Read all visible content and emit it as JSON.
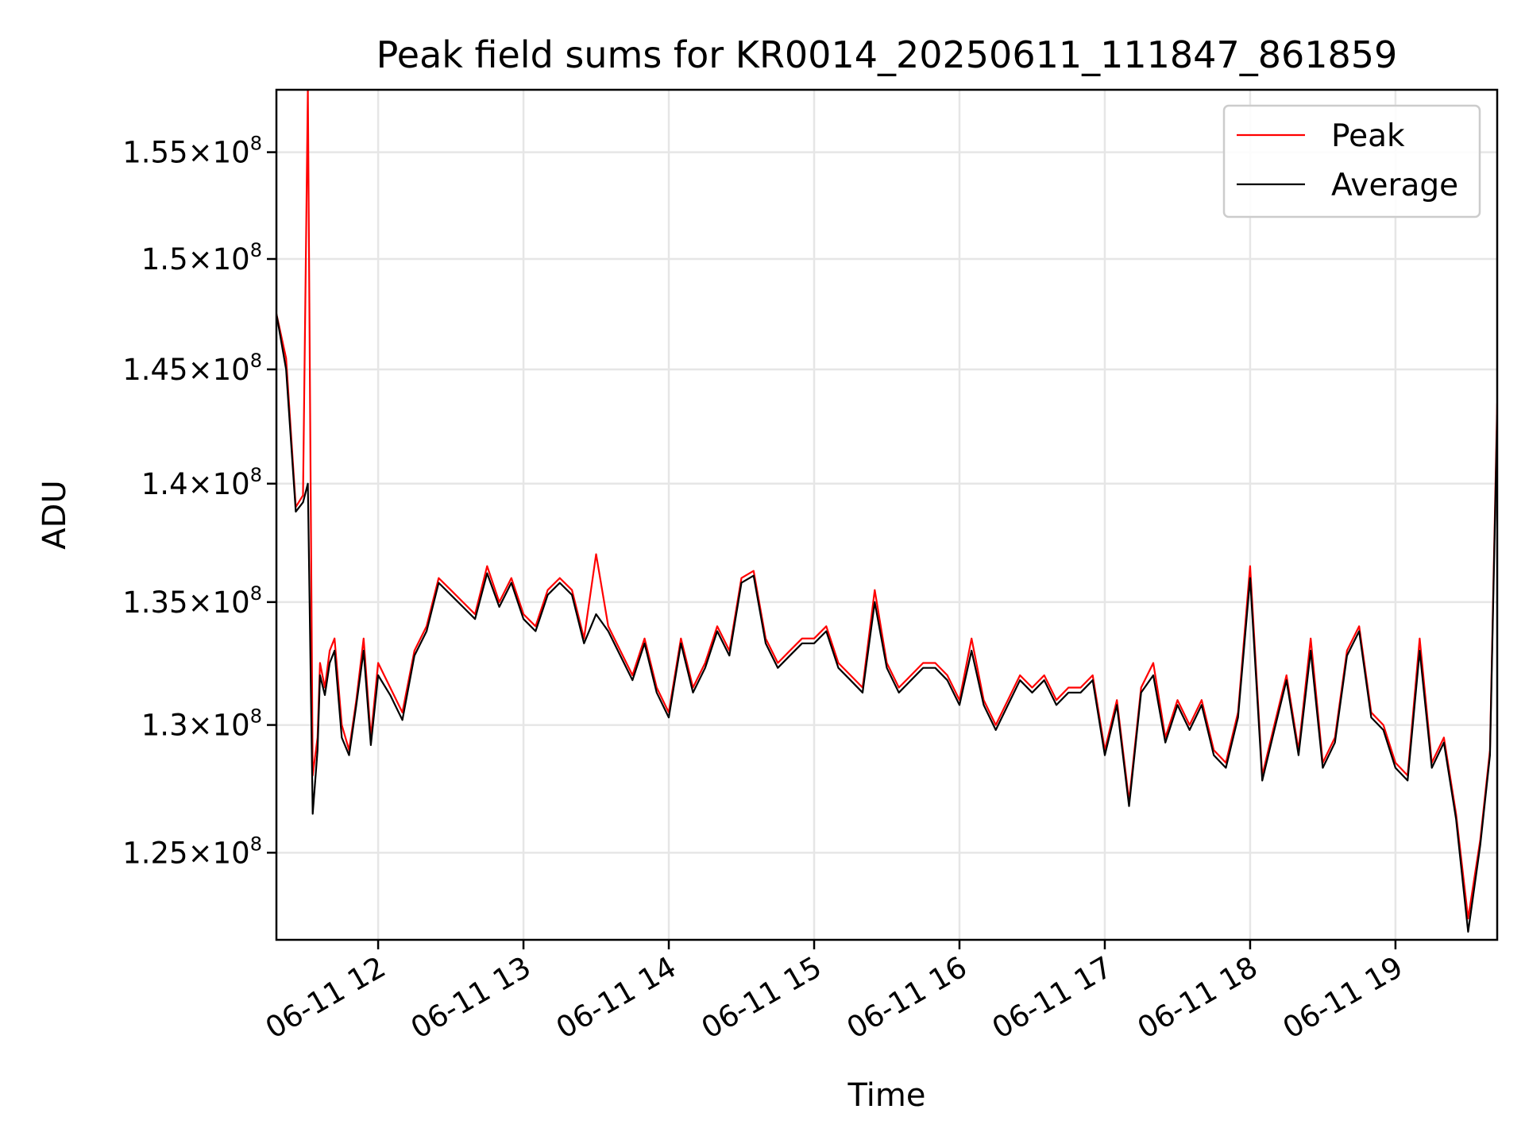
{
  "chart_data": {
    "type": "line",
    "title": "Peak field sums for KR0014_20250611_111847_861859",
    "xlabel": "Time",
    "ylabel": "ADU",
    "y_scale": "log",
    "ylim": [
      121700000,
      158000000
    ],
    "xlim": [
      "2025-06-11 11:18",
      "2025-06-11 19:42"
    ],
    "x_tick_labels": [
      "06-11 12",
      "06-11 13",
      "06-11 14",
      "06-11 15",
      "06-11 16",
      "06-11 17",
      "06-11 18",
      "06-11 19"
    ],
    "y_ticks": [
      {
        "value": 125000000,
        "mantissa": "1.25",
        "base": "10",
        "exponent": "8"
      },
      {
        "value": 130000000,
        "mantissa": "1.3",
        "base": "10",
        "exponent": "8"
      },
      {
        "value": 135000000,
        "mantissa": "1.35",
        "base": "10",
        "exponent": "8"
      },
      {
        "value": 140000000,
        "mantissa": "1.4",
        "base": "10",
        "exponent": "8"
      },
      {
        "value": 145000000,
        "mantissa": "1.45",
        "base": "10",
        "exponent": "8"
      },
      {
        "value": 150000000,
        "mantissa": "1.5",
        "base": "10",
        "exponent": "8"
      },
      {
        "value": 155000000,
        "mantissa": "1.55",
        "base": "10",
        "exponent": "8"
      }
    ],
    "grid": true,
    "legend_position": "top-right",
    "x": [
      "2025-06-11 11:18",
      "2025-06-11 11:22",
      "2025-06-11 11:26",
      "2025-06-11 11:29",
      "2025-06-11 11:31",
      "2025-06-11 11:33",
      "2025-06-11 11:35",
      "2025-06-11 11:36",
      "2025-06-11 11:38",
      "2025-06-11 11:40",
      "2025-06-11 11:42",
      "2025-06-11 11:45",
      "2025-06-11 11:48",
      "2025-06-11 11:51",
      "2025-06-11 11:54",
      "2025-06-11 11:57",
      "2025-06-11 12:00",
      "2025-06-11 12:05",
      "2025-06-11 12:10",
      "2025-06-11 12:15",
      "2025-06-11 12:20",
      "2025-06-11 12:25",
      "2025-06-11 12:30",
      "2025-06-11 12:35",
      "2025-06-11 12:40",
      "2025-06-11 12:45",
      "2025-06-11 12:50",
      "2025-06-11 12:55",
      "2025-06-11 13:00",
      "2025-06-11 13:05",
      "2025-06-11 13:10",
      "2025-06-11 13:15",
      "2025-06-11 13:20",
      "2025-06-11 13:25",
      "2025-06-11 13:30",
      "2025-06-11 13:35",
      "2025-06-11 13:40",
      "2025-06-11 13:45",
      "2025-06-11 13:50",
      "2025-06-11 13:55",
      "2025-06-11 14:00",
      "2025-06-11 14:05",
      "2025-06-11 14:10",
      "2025-06-11 14:15",
      "2025-06-11 14:20",
      "2025-06-11 14:25",
      "2025-06-11 14:30",
      "2025-06-11 14:35",
      "2025-06-11 14:40",
      "2025-06-11 14:45",
      "2025-06-11 14:50",
      "2025-06-11 14:55",
      "2025-06-11 15:00",
      "2025-06-11 15:05",
      "2025-06-11 15:10",
      "2025-06-11 15:15",
      "2025-06-11 15:20",
      "2025-06-11 15:25",
      "2025-06-11 15:30",
      "2025-06-11 15:35",
      "2025-06-11 15:40",
      "2025-06-11 15:45",
      "2025-06-11 15:50",
      "2025-06-11 15:55",
      "2025-06-11 16:00",
      "2025-06-11 16:05",
      "2025-06-11 16:10",
      "2025-06-11 16:15",
      "2025-06-11 16:20",
      "2025-06-11 16:25",
      "2025-06-11 16:30",
      "2025-06-11 16:35",
      "2025-06-11 16:40",
      "2025-06-11 16:45",
      "2025-06-11 16:50",
      "2025-06-11 16:55",
      "2025-06-11 17:00",
      "2025-06-11 17:05",
      "2025-06-11 17:10",
      "2025-06-11 17:15",
      "2025-06-11 17:20",
      "2025-06-11 17:25",
      "2025-06-11 17:30",
      "2025-06-11 17:35",
      "2025-06-11 17:40",
      "2025-06-11 17:45",
      "2025-06-11 17:50",
      "2025-06-11 17:55",
      "2025-06-11 18:00",
      "2025-06-11 18:05",
      "2025-06-11 18:10",
      "2025-06-11 18:15",
      "2025-06-11 18:20",
      "2025-06-11 18:25",
      "2025-06-11 18:30",
      "2025-06-11 18:35",
      "2025-06-11 18:40",
      "2025-06-11 18:45",
      "2025-06-11 18:50",
      "2025-06-11 18:55",
      "2025-06-11 19:00",
      "2025-06-11 19:05",
      "2025-06-11 19:10",
      "2025-06-11 19:15",
      "2025-06-11 19:20",
      "2025-06-11 19:25",
      "2025-06-11 19:30",
      "2025-06-11 19:35",
      "2025-06-11 19:39",
      "2025-06-11 19:42"
    ],
    "series": [
      {
        "name": "Peak",
        "color": "#ff0000",
        "values": [
          147500000,
          145500000,
          139000000,
          139500000,
          158000000,
          128000000,
          129500000,
          132500000,
          131500000,
          133000000,
          133500000,
          130000000,
          129000000,
          131000000,
          133500000,
          129500000,
          132500000,
          131500000,
          130500000,
          133000000,
          134000000,
          136000000,
          135500000,
          135000000,
          134500000,
          136500000,
          135000000,
          136000000,
          134500000,
          134000000,
          135500000,
          136000000,
          135500000,
          133500000,
          137000000,
          134000000,
          133000000,
          132000000,
          133500000,
          131500000,
          130500000,
          133500000,
          131500000,
          132500000,
          134000000,
          133000000,
          136000000,
          136300000,
          133500000,
          132500000,
          133000000,
          133500000,
          133500000,
          134000000,
          132500000,
          132000000,
          131500000,
          135500000,
          132500000,
          131500000,
          132000000,
          132500000,
          132500000,
          132000000,
          131000000,
          133500000,
          131000000,
          130000000,
          131000000,
          132000000,
          131500000,
          132000000,
          131000000,
          131500000,
          131500000,
          132000000,
          129000000,
          131000000,
          127000000,
          131500000,
          132500000,
          129500000,
          131000000,
          130000000,
          131000000,
          129000000,
          128500000,
          130500000,
          136500000,
          128000000,
          130000000,
          132000000,
          129000000,
          133500000,
          128500000,
          129500000,
          133000000,
          134000000,
          130500000,
          130000000,
          128500000,
          128000000,
          133500000,
          128500000,
          129500000,
          126500000,
          122500000,
          125500000,
          129000000,
          143500000
        ]
      },
      {
        "name": "Average",
        "color": "#000000",
        "values": [
          147500000,
          145000000,
          138800000,
          139200000,
          140000000,
          126500000,
          129000000,
          132000000,
          131200000,
          132500000,
          133000000,
          129500000,
          128800000,
          130800000,
          133000000,
          129200000,
          132000000,
          131200000,
          130200000,
          132800000,
          133800000,
          135800000,
          135300000,
          134800000,
          134300000,
          136200000,
          134800000,
          135800000,
          134300000,
          133800000,
          135300000,
          135800000,
          135300000,
          133300000,
          134500000,
          133800000,
          132800000,
          131800000,
          133300000,
          131300000,
          130300000,
          133300000,
          131300000,
          132300000,
          133800000,
          132800000,
          135800000,
          136100000,
          133300000,
          132300000,
          132800000,
          133300000,
          133300000,
          133800000,
          132300000,
          131800000,
          131300000,
          135000000,
          132300000,
          131300000,
          131800000,
          132300000,
          132300000,
          131800000,
          130800000,
          133000000,
          130800000,
          129800000,
          130800000,
          131800000,
          131300000,
          131800000,
          130800000,
          131300000,
          131300000,
          131800000,
          128800000,
          130800000,
          126800000,
          131300000,
          132000000,
          129300000,
          130800000,
          129800000,
          130800000,
          128800000,
          128300000,
          130300000,
          136000000,
          127800000,
          129800000,
          131800000,
          128800000,
          133000000,
          128300000,
          129300000,
          132800000,
          133800000,
          130300000,
          129800000,
          128300000,
          127800000,
          133000000,
          128300000,
          129300000,
          126300000,
          122000000,
          125300000,
          128800000,
          143000000
        ]
      }
    ]
  }
}
